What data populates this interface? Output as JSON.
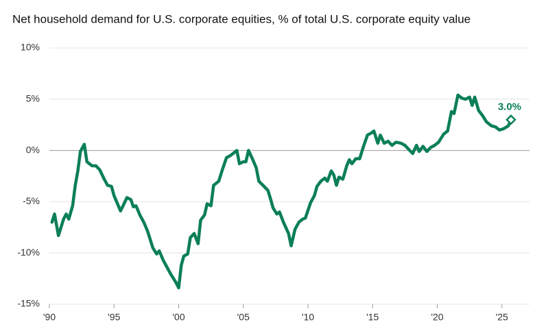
{
  "chart_data": {
    "type": "line",
    "title": "Net household demand for U.S. corporate equities, % of total U.S. corporate equity value",
    "series": [
      {
        "name": "Net household demand",
        "color": "#0b7f56",
        "x": [
          1990.2,
          1990.4,
          1990.7,
          1991.1,
          1991.3,
          1991.5,
          1991.8,
          1992.0,
          1992.2,
          1992.4,
          1992.7,
          1992.9,
          1993.3,
          1993.6,
          1993.9,
          1994.2,
          1994.5,
          1994.8,
          1995.0,
          1995.2,
          1995.5,
          1995.7,
          1996.0,
          1996.3,
          1996.5,
          1996.7,
          1997.0,
          1997.3,
          1997.6,
          1998.0,
          1998.3,
          1998.5,
          1998.8,
          1999.1,
          1999.4,
          1999.8,
          2000.0,
          2000.2,
          2000.4,
          2000.7,
          2000.9,
          2001.2,
          2001.5,
          2001.7,
          2002.0,
          2002.2,
          2002.5,
          2002.7,
          2003.1,
          2003.4,
          2003.7,
          2004.0,
          2004.2,
          2004.5,
          2004.7,
          2005.0,
          2005.2,
          2005.4,
          2005.7,
          2006.0,
          2006.2,
          2006.6,
          2006.9,
          2007.1,
          2007.3,
          2007.6,
          2007.8,
          2008.1,
          2008.5,
          2008.7,
          2009.0,
          2009.3,
          2009.6,
          2009.8,
          2010.2,
          2010.5,
          2010.7,
          2011.0,
          2011.3,
          2011.5,
          2011.8,
          2012.0,
          2012.2,
          2012.4,
          2012.7,
          2013.0,
          2013.2,
          2013.4,
          2013.7,
          2014.0,
          2014.3,
          2014.6,
          2014.9,
          2015.1,
          2015.4,
          2015.6,
          2015.9,
          2016.2,
          2016.5,
          2016.8,
          2017.2,
          2017.5,
          2017.8,
          2018.1,
          2018.4,
          2018.6,
          2018.9,
          2019.2,
          2019.5,
          2019.8,
          2020.1,
          2020.5,
          2020.8,
          2021.1,
          2021.3,
          2021.6,
          2021.9,
          2022.2,
          2022.5,
          2022.7,
          2022.9,
          2023.2,
          2023.5,
          2023.8,
          2024.2,
          2024.5,
          2024.8,
          2025.1,
          2025.5,
          2025.7
        ],
        "values": [
          -7.0,
          -6.2,
          -8.3,
          -6.7,
          -6.2,
          -6.7,
          -5.4,
          -3.4,
          -2.0,
          -0.1,
          0.6,
          -1.1,
          -1.5,
          -1.5,
          -1.9,
          -2.7,
          -3.4,
          -3.5,
          -4.4,
          -5.0,
          -5.9,
          -5.4,
          -4.6,
          -4.8,
          -5.5,
          -5.4,
          -6.3,
          -7.0,
          -7.9,
          -9.5,
          -10.1,
          -9.8,
          -10.7,
          -11.4,
          -12.1,
          -12.9,
          -13.4,
          -11.2,
          -10.3,
          -10.1,
          -8.5,
          -8.1,
          -9.1,
          -6.8,
          -6.3,
          -5.2,
          -5.4,
          -3.4,
          -3.0,
          -1.8,
          -0.7,
          -0.5,
          -0.3,
          0.0,
          -1.3,
          -1.1,
          -1.1,
          0.0,
          -0.8,
          -1.7,
          -3.0,
          -3.5,
          -3.9,
          -4.7,
          -5.6,
          -6.2,
          -6.0,
          -7.0,
          -8.1,
          -9.3,
          -7.7,
          -7.0,
          -6.7,
          -6.6,
          -5.1,
          -4.4,
          -3.5,
          -3.0,
          -2.7,
          -3.0,
          -2.0,
          -2.4,
          -3.4,
          -2.6,
          -2.8,
          -1.5,
          -0.9,
          -1.3,
          -0.8,
          -0.8,
          0.4,
          1.5,
          1.7,
          1.9,
          0.7,
          1.5,
          0.7,
          0.9,
          0.5,
          0.8,
          0.7,
          0.5,
          0.1,
          -0.3,
          0.5,
          -0.1,
          0.4,
          -0.1,
          0.3,
          0.5,
          0.8,
          1.6,
          1.9,
          3.8,
          3.6,
          5.4,
          5.1,
          5.0,
          5.2,
          4.4,
          5.2,
          3.9,
          3.4,
          2.8,
          2.4,
          2.3,
          2.0,
          2.1,
          2.4,
          3.0
        ]
      }
    ],
    "annotation": {
      "label": "3.0%"
    },
    "xlim": [
      1990,
      2026.5
    ],
    "xticks": [
      {
        "value": 1990,
        "label": "'90"
      },
      {
        "value": 1995,
        "label": "'95"
      },
      {
        "value": 2000,
        "label": "'00"
      },
      {
        "value": 2005,
        "label": "'05"
      },
      {
        "value": 2010,
        "label": "'10"
      },
      {
        "value": 2015,
        "label": "'15"
      },
      {
        "value": 2020,
        "label": "'20"
      },
      {
        "value": 2025,
        "label": "'25"
      }
    ],
    "ylim": [
      -15,
      10
    ],
    "yticks": [
      {
        "value": -15,
        "label": "-15%"
      },
      {
        "value": -10,
        "label": "-10%"
      },
      {
        "value": -5,
        "label": "-5%"
      },
      {
        "value": 0,
        "label": "0%"
      },
      {
        "value": 5,
        "label": "5%"
      },
      {
        "value": 10,
        "label": "10%"
      }
    ],
    "grid": true
  }
}
